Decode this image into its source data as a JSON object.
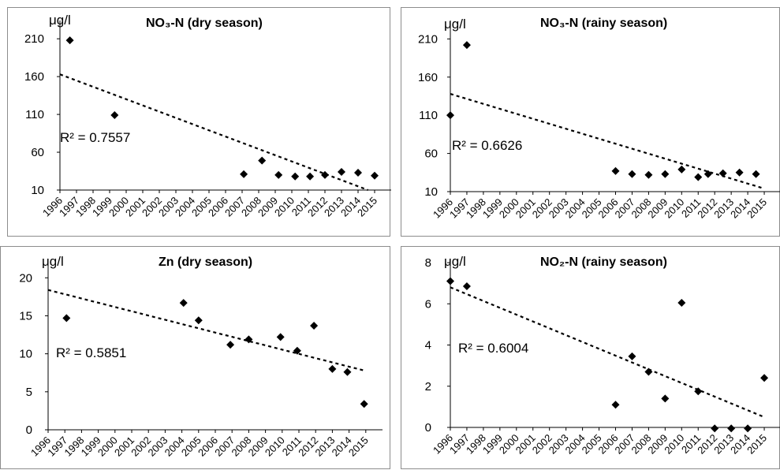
{
  "chart_data": [
    {
      "type": "scatter",
      "title": "NO₃-N (dry season)",
      "unit": "μg/l",
      "r2_label": "R² = 0.7557",
      "yticks": [
        10,
        60,
        110,
        160,
        210
      ],
      "ylim": [
        10,
        230
      ],
      "x_labels": [
        "1996",
        "1997",
        "1998",
        "1999",
        "2000",
        "2001",
        "2002",
        "2003",
        "2004",
        "2005",
        "2006",
        "2007",
        "2008",
        "2009",
        "2010",
        "2011",
        "2012",
        "2013",
        "2014",
        "2015"
      ],
      "points": [
        [
          1996.6,
          208
        ],
        [
          1999.3,
          109
        ],
        [
          2007.1,
          31
        ],
        [
          2008.2,
          49
        ],
        [
          2009.2,
          30
        ],
        [
          2010.2,
          28
        ],
        [
          2011.1,
          28
        ],
        [
          2012.0,
          30
        ],
        [
          2013.0,
          34
        ],
        [
          2014.0,
          33
        ],
        [
          2015.0,
          29
        ]
      ],
      "trend": [
        [
          1996,
          163
        ],
        [
          2014.6,
          10
        ]
      ],
      "grid": false
    },
    {
      "type": "scatter",
      "title": "NO₃-N (rainy season)",
      "unit": "μg/l",
      "r2_label": "R² = 0.6626",
      "yticks": [
        10,
        60,
        110,
        160,
        210
      ],
      "ylim": [
        10,
        230
      ],
      "x_labels": [
        "1996",
        "1997",
        "1998",
        "1999",
        "2000",
        "2001",
        "2002",
        "2003",
        "2004",
        "2005",
        "2006",
        "2007",
        "2008",
        "2009",
        "2010",
        "2011",
        "2012",
        "2013",
        "2014",
        "2015"
      ],
      "points": [
        [
          1996.0,
          110
        ],
        [
          1997.0,
          202
        ],
        [
          2006.0,
          37
        ],
        [
          2007.0,
          33
        ],
        [
          2008.0,
          32
        ],
        [
          2009.0,
          33
        ],
        [
          2010.0,
          39
        ],
        [
          2011.0,
          29
        ],
        [
          2011.6,
          33
        ],
        [
          2012.5,
          34
        ],
        [
          2013.5,
          35
        ],
        [
          2014.5,
          33
        ]
      ],
      "trend": [
        [
          1996,
          138
        ],
        [
          2015,
          14
        ]
      ],
      "grid": false
    },
    {
      "type": "scatter",
      "title": "Zn (dry season)",
      "unit": "μg/l",
      "r2_label": "R² = 0.5851",
      "yticks": [
        0,
        5,
        10,
        15,
        20
      ],
      "ylim": [
        0,
        22
      ],
      "x_labels": [
        "1996",
        "1997",
        "1998",
        "1999",
        "2000",
        "2001",
        "2002",
        "2003",
        "2004",
        "2005",
        "2006",
        "2007",
        "2008",
        "2009",
        "2010",
        "2011",
        "2012",
        "2013",
        "2014",
        "2015"
      ],
      "points": [
        [
          1997.1,
          14.7
        ],
        [
          2004.1,
          16.7
        ],
        [
          2005.0,
          14.4
        ],
        [
          2006.9,
          11.2
        ],
        [
          2008.0,
          11.9
        ],
        [
          2009.9,
          12.2
        ],
        [
          2010.9,
          10.4
        ],
        [
          2011.9,
          13.7
        ],
        [
          2013.0,
          8.0
        ],
        [
          2013.9,
          7.6
        ],
        [
          2014.9,
          3.4
        ]
      ],
      "trend": [
        [
          1996,
          18.4
        ],
        [
          2014.9,
          7.8
        ]
      ],
      "grid": false
    },
    {
      "type": "scatter",
      "title": "NO₂-N (rainy season)",
      "unit": "μg/l",
      "r2_label": "R² = 0.6004",
      "yticks": [
        0,
        2,
        4,
        6,
        8
      ],
      "ylim": [
        0,
        8
      ],
      "x_labels": [
        "1996",
        "1997",
        "1998",
        "1999",
        "2000",
        "2001",
        "2002",
        "2003",
        "2004",
        "2005",
        "2006",
        "2007",
        "2008",
        "2009",
        "2010",
        "2011",
        "2012",
        "2013",
        "2014",
        "2015"
      ],
      "points": [
        [
          1996.0,
          7.1
        ],
        [
          1997.0,
          6.85
        ],
        [
          2006.0,
          1.1
        ],
        [
          2007.0,
          3.45
        ],
        [
          2008.0,
          2.7
        ],
        [
          2009.0,
          1.4
        ],
        [
          2010.0,
          6.05
        ],
        [
          2011.0,
          1.75
        ],
        [
          2012.0,
          -0.05
        ],
        [
          2013.0,
          -0.05
        ],
        [
          2014.0,
          -0.05
        ],
        [
          2015.0,
          2.4
        ]
      ],
      "trend": [
        [
          1996,
          6.8
        ],
        [
          2015,
          0.5
        ]
      ],
      "grid": false
    }
  ]
}
